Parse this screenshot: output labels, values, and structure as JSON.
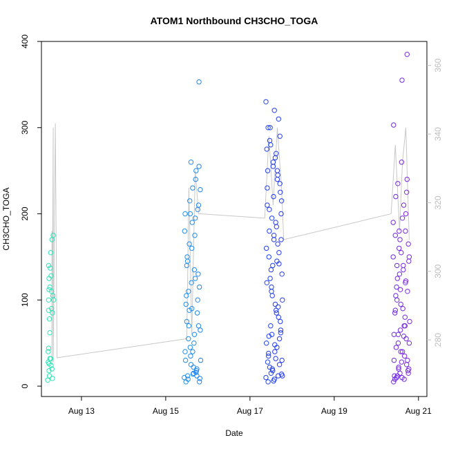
{
  "chart_data": {
    "type": "scatter",
    "title": "ATOM1 Northbound CH3CHO_TOGA",
    "xlabel": "Date",
    "ylabel": "CH3CHO_TOGA",
    "x_ticks": [
      "Aug 13",
      "Aug 15",
      "Aug 17",
      "Aug 19",
      "Aug 21"
    ],
    "y_ticks": [
      0,
      100,
      200,
      300,
      400
    ],
    "y2_ticks": [
      280,
      300,
      320,
      340,
      360
    ],
    "xlim_days": [
      12.05,
      21.2
    ],
    "ylim": [
      -12,
      400
    ],
    "y2lim": [
      263.5,
      367
    ],
    "grid": false,
    "legend": "none",
    "colors": {
      "axis": "#000000",
      "secondary_axis": "#bdbdbd",
      "trace_line": "#c8c8c8",
      "color_scale": [
        "#2ee8b0",
        "#1ec8e8",
        "#1e88f0",
        "#1f3cf0",
        "#4a28e8",
        "#8a28e0"
      ]
    },
    "trace_x": [
      12.3,
      12.3,
      12.33,
      12.33,
      12.38,
      12.42,
      15.5,
      15.55,
      15.62,
      15.7,
      15.78,
      15.82,
      17.35,
      17.45,
      17.55,
      17.65,
      17.75,
      17.8,
      20.35,
      20.45,
      20.55,
      20.62,
      20.7,
      20.78
    ],
    "trace_y": [
      180,
      25,
      300,
      28,
      305,
      33,
      55,
      230,
      60,
      250,
      200,
      200,
      195,
      290,
      210,
      300,
      230,
      170,
      200,
      280,
      180,
      260,
      300,
      170
    ],
    "series": [
      {
        "name": "",
        "x": [
          12.2,
          12.21,
          12.21,
          12.22,
          12.22,
          12.22,
          12.22,
          12.23,
          12.23,
          12.23,
          12.23,
          12.24,
          12.24,
          12.25,
          12.25,
          12.25,
          12.26,
          12.27,
          12.27,
          12.28,
          12.28,
          12.29,
          12.29,
          12.3,
          12.3,
          12.31,
          12.31,
          12.32,
          12.33,
          12.34
        ],
        "y": [
          7,
          28,
          40,
          100,
          140,
          88,
          44,
          26,
          125,
          112,
          18,
          12,
          78,
          115,
          62,
          32,
          137,
          155,
          32,
          128,
          24,
          90,
          110,
          170,
          20,
          85,
          9,
          105,
          175,
          100
        ]
      },
      {
        "name": "",
        "x": [
          15.44,
          15.46,
          15.48,
          15.5,
          15.52,
          15.54,
          15.56,
          15.58,
          15.6,
          15.62,
          15.64,
          15.66,
          15.68,
          15.7,
          15.72,
          15.74,
          15.76,
          15.78,
          15.8,
          15.82,
          15.45,
          15.47,
          15.49,
          15.51,
          15.53,
          15.55,
          15.57,
          15.59,
          15.61,
          15.63,
          15.65,
          15.67,
          15.69,
          15.71,
          15.73,
          15.75,
          15.77,
          15.79,
          15.81,
          15.83,
          15.46,
          15.5,
          15.54,
          15.58,
          15.62,
          15.66,
          15.7,
          15.74,
          15.78,
          15.82,
          15.48,
          15.52,
          15.56,
          15.6,
          15.64,
          15.68,
          15.72,
          15.76,
          15.8,
          15.79
        ],
        "y": [
          10,
          40,
          95,
          140,
          12,
          55,
          165,
          200,
          25,
          90,
          230,
          15,
          60,
          125,
          250,
          20,
          100,
          210,
          5,
          65,
          180,
          30,
          105,
          150,
          8,
          70,
          215,
          35,
          120,
          190,
          14,
          50,
          175,
          240,
          18,
          85,
          130,
          255,
          9,
          30,
          200,
          75,
          110,
          45,
          160,
          22,
          195,
          12,
          70,
          228,
          5,
          145,
          88,
          260,
          40,
          135,
          16,
          205,
          115,
          353
        ]
      },
      {
        "name": "",
        "x": [
          17.38,
          17.4,
          17.42,
          17.44,
          17.46,
          17.48,
          17.5,
          17.52,
          17.54,
          17.56,
          17.58,
          17.6,
          17.62,
          17.64,
          17.66,
          17.68,
          17.7,
          17.72,
          17.74,
          17.76,
          17.39,
          17.41,
          17.43,
          17.45,
          17.47,
          17.49,
          17.51,
          17.53,
          17.55,
          17.57,
          17.59,
          17.61,
          17.63,
          17.65,
          17.67,
          17.69,
          17.71,
          17.73,
          17.75,
          17.77,
          17.38,
          17.42,
          17.46,
          17.5,
          17.54,
          17.58,
          17.62,
          17.66,
          17.7,
          17.74,
          17.4,
          17.44,
          17.48,
          17.52,
          17.56,
          17.6,
          17.64,
          17.68,
          17.72,
          17.76,
          17.39,
          17.43,
          17.47,
          17.51,
          17.55,
          17.59,
          17.63,
          17.67,
          17.71,
          17.75,
          17.41,
          17.45,
          17.49,
          17.53,
          17.57,
          17.61,
          17.65,
          17.69,
          17.73,
          17.77
        ],
        "y": [
          10,
          120,
          250,
          35,
          180,
          300,
          15,
          60,
          140,
          220,
          8,
          95,
          270,
          45,
          165,
          310,
          25,
          75,
          200,
          130,
          50,
          230,
          5,
          150,
          285,
          70,
          110,
          20,
          260,
          175,
          40,
          190,
          85,
          240,
          12,
          155,
          290,
          65,
          215,
          100,
          330,
          28,
          205,
          135,
          18,
          320,
          88,
          245,
          55,
          170,
          275,
          38,
          125,
          195,
          6,
          265,
          145,
          80,
          225,
          30,
          160,
          300,
          22,
          115,
          255,
          48,
          185,
          92,
          235,
          14,
          210,
          58,
          280,
          105,
          170,
          32,
          250,
          142,
          62,
          12
        ]
      },
      {
        "name": "",
        "x": [
          20.4,
          20.42,
          20.44,
          20.46,
          20.48,
          20.5,
          20.52,
          20.54,
          20.56,
          20.58,
          20.6,
          20.62,
          20.64,
          20.66,
          20.68,
          20.7,
          20.72,
          20.74,
          20.76,
          20.78,
          20.41,
          20.43,
          20.45,
          20.47,
          20.49,
          20.51,
          20.53,
          20.55,
          20.57,
          20.59,
          20.61,
          20.63,
          20.65,
          20.67,
          20.69,
          20.71,
          20.73,
          20.75,
          20.77,
          20.79,
          20.4,
          20.44,
          20.48,
          20.52,
          20.56,
          20.6,
          20.64,
          20.68,
          20.72,
          20.76,
          20.42,
          20.46,
          20.5,
          20.54,
          20.58,
          20.62,
          20.66,
          20.7,
          20.74,
          20.78,
          20.41,
          20.45,
          20.49,
          20.53,
          20.57,
          20.61,
          20.65,
          20.69,
          20.73,
          20.77
        ],
        "y": [
          150,
          30,
          85,
          220,
          10,
          125,
          60,
          180,
          15,
          95,
          260,
          40,
          140,
          8,
          70,
          200,
          25,
          110,
          165,
          50,
          303,
          12,
          175,
          45,
          100,
          235,
          20,
          130,
          65,
          155,
          10,
          90,
          210,
          35,
          120,
          55,
          240,
          18,
          145,
          75,
          190,
          8,
          115,
          50,
          170,
          28,
          135,
          80,
          225,
          15,
          60,
          105,
          12,
          160,
          40,
          195,
          70,
          122,
          30,
          150,
          5,
          88,
          140,
          22,
          112,
          355,
          58,
          180,
          385,
          20
        ]
      }
    ]
  }
}
